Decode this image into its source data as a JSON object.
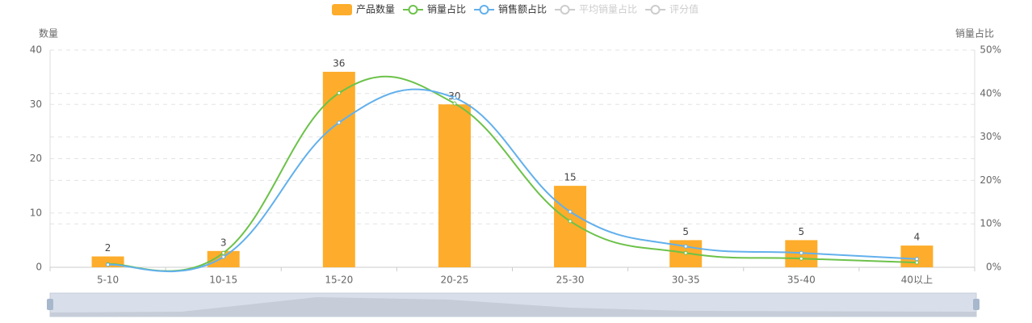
{
  "chart_data": {
    "type": "bar-line",
    "categories": [
      "5-10",
      "10-15",
      "15-20",
      "20-25",
      "25-30",
      "30-35",
      "35-40",
      "40以上"
    ],
    "series": [
      {
        "name": "产品数量",
        "type": "bar",
        "color": "#fdad2b",
        "values": [
          2,
          3,
          36,
          30,
          15,
          5,
          5,
          4
        ]
      },
      {
        "name": "销量占比",
        "type": "line",
        "axis": "y2",
        "color": "#6cc24a",
        "values": [
          0.7,
          3.3,
          40.1,
          37.7,
          10.6,
          3.3,
          2.0,
          1.1
        ]
      },
      {
        "name": "销售额占比",
        "type": "line",
        "axis": "y2",
        "color": "#62b0ec",
        "values": [
          0.6,
          2.4,
          33.3,
          39.0,
          12.8,
          4.8,
          3.3,
          1.9
        ]
      },
      {
        "name": "平均销量占比",
        "type": "line",
        "axis": "y2",
        "color": "#cccccc",
        "hidden": true
      },
      {
        "name": "评分值",
        "type": "line",
        "axis": "y2",
        "color": "#cccccc",
        "hidden": true
      }
    ],
    "ylabel": "数量",
    "y2label": "销量占比",
    "ylim": [
      0,
      40
    ],
    "yticks": [
      0,
      10,
      20,
      30,
      40
    ],
    "y2lim": [
      0,
      50
    ],
    "y2ticks": [
      {
        "value": 0,
        "label": "0%"
      },
      {
        "value": 10,
        "label": "10%"
      },
      {
        "value": 20,
        "label": "20%"
      },
      {
        "value": 30,
        "label": "30%"
      },
      {
        "value": 40,
        "label": "40%"
      },
      {
        "value": 50,
        "label": "50%"
      }
    ],
    "grid": true,
    "legend": "top"
  }
}
